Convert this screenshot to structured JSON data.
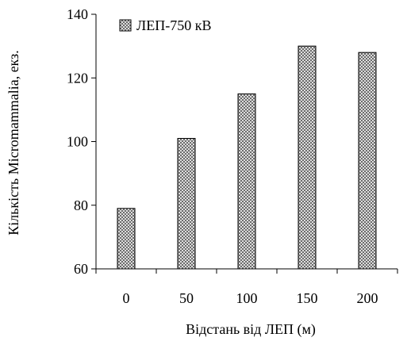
{
  "chart_data": {
    "type": "bar",
    "categories": [
      "0",
      "50",
      "100",
      "150",
      "200"
    ],
    "series": [
      {
        "name": "ЛЕП-750 кВ",
        "values": [
          79,
          101,
          115,
          130,
          128
        ]
      }
    ],
    "title": "",
    "xlabel": "Відстань від ЛЕП (м)",
    "ylabel": "Кількість Micromammalia, екз.",
    "ylim": [
      60,
      140
    ],
    "yticks": [
      "60",
      "80",
      "100",
      "120",
      "140"
    ],
    "grid": false,
    "legend_position": "top-left"
  }
}
